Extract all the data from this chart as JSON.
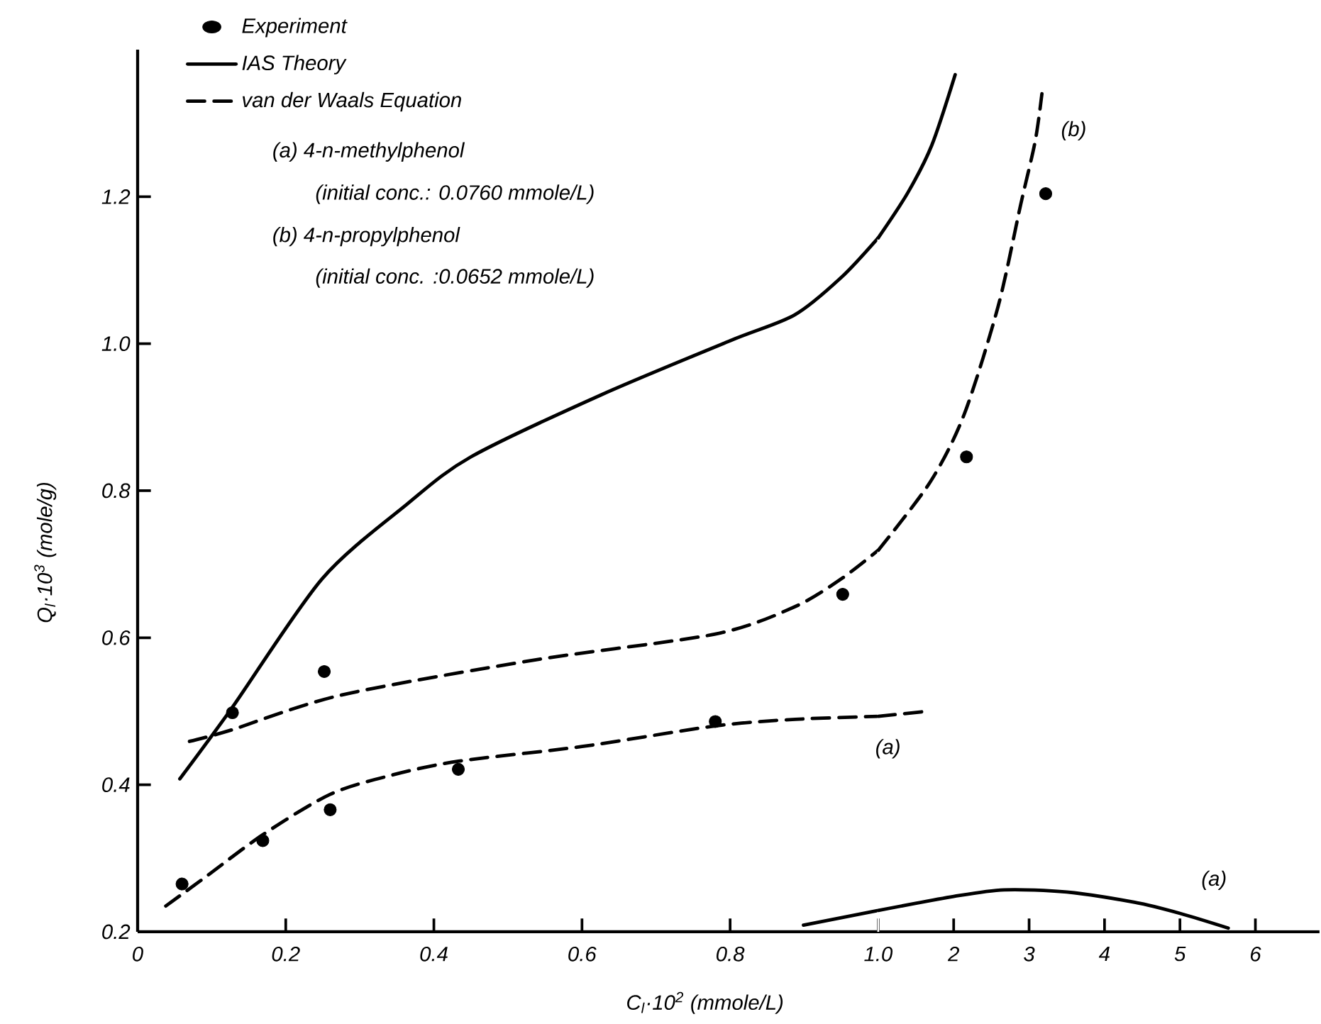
{
  "chart_data": [
    {
      "type": "line",
      "xlabel": "C$_{l}$·10$^{2}$ (mmole/L)",
      "ylabel": "Q$_{l}$·10$^{3}$ (mole/g)",
      "xlim": [
        0,
        1.0
      ],
      "xticks": [
        0,
        0.2,
        0.4,
        0.6,
        0.8,
        {
          "value": 1.0,
          "label": "1.0"
        }
      ],
      "ylim": [
        0.2,
        1.4
      ],
      "yticks": [
        0.2,
        0.4,
        0.6,
        0.8,
        {
          "value": 1.0,
          "label": "1.0"
        },
        1.2
      ],
      "legend": "top left",
      "annotations": [
        "(a) 4-n-methylphenol",
        "(initial conc.: 0.0760 mmole/L)",
        "(b) 4-n-propylphenol",
        "(initial conc. :0.0652 mmole/L)"
      ],
      "series": [
        {
          "name": "Experiment",
          "type": "scatter",
          "marker": "circle",
          "color": "#000000",
          "x": [
            0.06,
            0.169,
            0.26,
            0.433,
            0.78,
            0.128,
            0.252,
            0.952
          ],
          "values": [
            0.265,
            0.324,
            0.366,
            0.421,
            0.486,
            0.498,
            0.554,
            0.659
          ]
        },
        {
          "name": "IAS Theory",
          "line_style": "solid",
          "color": "#000000",
          "x": [
            0.057,
            0.127,
            0.249,
            0.363,
            0.45,
            0.625,
            0.8,
            0.887,
            0.95,
            1.0
          ],
          "values": [
            0.408,
            0.504,
            0.68,
            0.781,
            0.846,
            0.93,
            1.004,
            1.039,
            1.09,
            1.144
          ]
        },
        {
          "name": "van der Waals Equation",
          "line_style": "dashed",
          "color": "#000000",
          "x": [
            0.07,
            0.125,
            0.275,
            0.538,
            0.78,
            0.887,
            0.95,
            1.0
          ],
          "values": [
            0.459,
            0.474,
            0.522,
            0.57,
            0.605,
            0.642,
            0.68,
            0.719
          ]
        },
        {
          "line_style": "dashed",
          "color": "#000000",
          "x": [
            0.038,
            0.087,
            0.169,
            0.26,
            0.343,
            0.433,
            0.6,
            0.78,
            0.888,
            1.0
          ],
          "values": [
            0.235,
            0.271,
            0.332,
            0.387,
            0.413,
            0.432,
            0.452,
            0.48,
            0.489,
            0.493
          ]
        },
        {
          "line_style": "solid",
          "color": "#000000",
          "x": [
            0.899,
            1.0
          ],
          "values": [
            0.209,
            0.229
          ]
        }
      ]
    },
    {
      "type": "line",
      "xlim": [
        1.0,
        6.85
      ],
      "xticks": [
        2,
        3,
        4,
        5,
        6
      ],
      "ylim": [
        0.2,
        1.4
      ],
      "yticks": [
        0.2,
        0.4,
        0.6,
        0.8,
        1.0,
        1.2
      ],
      "tick_labels": "x",
      "annotations": [
        "(b)",
        "(a)",
        "(a)"
      ],
      "series": [
        {
          "type": "scatter",
          "marker": "circle",
          "color": "#000000",
          "x": [
            2.17,
            3.22
          ],
          "values": [
            0.846,
            1.204
          ]
        },
        {
          "line_style": "solid",
          "color": "#000000",
          "x": [
            1.0,
            1.39,
            1.71,
            2.02
          ],
          "values": [
            1.144,
            1.205,
            1.27,
            1.366
          ]
        },
        {
          "line_style": "dashed",
          "color": "#000000",
          "x": [
            1.0,
            1.69,
            2.14,
            2.59,
            2.89,
            3.08,
            3.17
          ],
          "values": [
            0.719,
            0.812,
            0.904,
            1.051,
            1.19,
            1.275,
            1.34
          ]
        },
        {
          "line_style": "dashed",
          "color": "#000000",
          "x": [
            1.0,
            1.65
          ],
          "values": [
            0.493,
            0.5
          ]
        },
        {
          "line_style": "solid",
          "color": "#000000",
          "x": [
            1.0,
            2.0,
            2.67,
            3.5,
            4.4,
            5.0,
            5.64
          ],
          "values": [
            0.229,
            0.248,
            0.257,
            0.254,
            0.24,
            0.225,
            0.205
          ]
        }
      ]
    }
  ]
}
